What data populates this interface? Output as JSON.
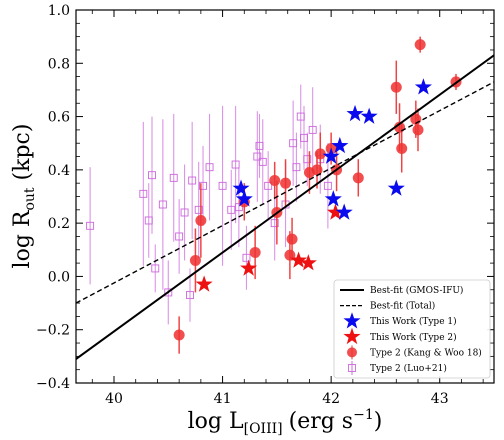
{
  "chart_data": {
    "type": "scatter",
    "title": "",
    "xlabel": "log L",
    "xlabel_sub": "[OIII]",
    "xlabel_unit": "(erg s",
    "xlabel_unit_sup": "−1",
    "xlabel_unit_close": ")",
    "ylabel": "log R",
    "ylabel_sub": "out",
    "ylabel_unit": " (kpc)",
    "xlim": [
      39.65,
      43.5
    ],
    "ylim": [
      -0.4,
      1.0
    ],
    "xticks": [
      40,
      41,
      42,
      43
    ],
    "yticks": [
      -0.4,
      -0.2,
      0.0,
      0.2,
      0.4,
      0.6,
      0.8,
      1.0
    ],
    "xtick_labels": [
      "40",
      "41",
      "42",
      "43"
    ],
    "ytick_labels": [
      "−0.4",
      "−0.2",
      "0.0",
      "0.2",
      "0.4",
      "0.6",
      "0.8",
      "1.0"
    ],
    "grid": false,
    "legend_position": "bottom-right",
    "fits": [
      {
        "name": "Best-fit (GMOS-IFU)",
        "style": "solid",
        "x": [
          39.65,
          43.5
        ],
        "y": [
          -0.31,
          0.83
        ]
      },
      {
        "name": "Best-fit (Total)",
        "style": "dashed",
        "x": [
          39.65,
          43.5
        ],
        "y": [
          -0.1,
          0.73
        ]
      }
    ],
    "series": [
      {
        "name": "This Work (Type 1)",
        "marker": "star",
        "color": "#0a0aee",
        "points": [
          {
            "x": 41.17,
            "y": 0.33
          },
          {
            "x": 41.2,
            "y": 0.29
          },
          {
            "x": 42.0,
            "y": 0.45
          },
          {
            "x": 42.02,
            "y": 0.29
          },
          {
            "x": 42.08,
            "y": 0.49
          },
          {
            "x": 42.12,
            "y": 0.24
          },
          {
            "x": 42.22,
            "y": 0.61
          },
          {
            "x": 42.35,
            "y": 0.6
          },
          {
            "x": 42.6,
            "y": 0.33
          },
          {
            "x": 42.85,
            "y": 0.71
          }
        ]
      },
      {
        "name": "This Work (Type 2)",
        "marker": "star",
        "color": "#ee1111",
        "points": [
          {
            "x": 40.83,
            "y": -0.03
          },
          {
            "x": 41.24,
            "y": 0.03
          },
          {
            "x": 41.7,
            "y": 0.06
          },
          {
            "x": 41.79,
            "y": 0.05
          },
          {
            "x": 42.04,
            "y": 0.24
          }
        ]
      },
      {
        "name": "Type 2 (Kang & Woo 18)",
        "marker": "circle",
        "color": "#ee3030",
        "points": [
          {
            "x": 40.6,
            "y": -0.22,
            "err": 0.07
          },
          {
            "x": 40.75,
            "y": 0.06,
            "err": 0.12
          },
          {
            "x": 40.8,
            "y": 0.21,
            "err": 0.14
          },
          {
            "x": 41.2,
            "y": 0.28,
            "err": 0.07
          },
          {
            "x": 41.3,
            "y": 0.09,
            "err": 0.1
          },
          {
            "x": 41.48,
            "y": 0.36,
            "err": 0.07
          },
          {
            "x": 41.5,
            "y": 0.24,
            "err": 0.12
          },
          {
            "x": 41.58,
            "y": 0.35,
            "err": 0.09
          },
          {
            "x": 41.62,
            "y": 0.08,
            "err": 0.09
          },
          {
            "x": 41.64,
            "y": 0.14,
            "err": 0.08
          },
          {
            "x": 41.8,
            "y": 0.39,
            "err": 0.08
          },
          {
            "x": 41.87,
            "y": 0.4,
            "err": 0.07
          },
          {
            "x": 41.9,
            "y": 0.46,
            "err": 0.08
          },
          {
            "x": 42.0,
            "y": 0.48,
            "err": 0.06
          },
          {
            "x": 42.05,
            "y": 0.4,
            "err": 0.08
          },
          {
            "x": 42.25,
            "y": 0.37,
            "err": 0.07
          },
          {
            "x": 42.6,
            "y": 0.71,
            "err": 0.1
          },
          {
            "x": 42.63,
            "y": 0.56,
            "err": 0.09
          },
          {
            "x": 42.65,
            "y": 0.48,
            "err": 0.09
          },
          {
            "x": 42.78,
            "y": 0.59,
            "err": 0.07
          },
          {
            "x": 42.8,
            "y": 0.55,
            "err": 0.08
          },
          {
            "x": 42.82,
            "y": 0.87,
            "err": 0.03
          },
          {
            "x": 43.15,
            "y": 0.73,
            "err": 0.03
          }
        ]
      },
      {
        "name": "Type 2 (Luo+21)",
        "marker": "open-square",
        "color": "#cc66dd",
        "points": [
          {
            "x": 39.78,
            "y": 0.19,
            "err": 0.22
          },
          {
            "x": 40.27,
            "y": 0.31,
            "err": 0.27
          },
          {
            "x": 40.32,
            "y": 0.21,
            "err": 0.14
          },
          {
            "x": 40.35,
            "y": 0.38,
            "err": 0.22
          },
          {
            "x": 40.38,
            "y": 0.03,
            "err": 0.09
          },
          {
            "x": 40.45,
            "y": 0.27,
            "err": 0.32
          },
          {
            "x": 40.5,
            "y": -0.06,
            "err": 0.12
          },
          {
            "x": 40.55,
            "y": 0.37,
            "err": 0.24
          },
          {
            "x": 40.6,
            "y": 0.15,
            "err": 0.14
          },
          {
            "x": 40.65,
            "y": 0.24,
            "err": 0.18
          },
          {
            "x": 40.7,
            "y": -0.07,
            "err": 0.1
          },
          {
            "x": 40.72,
            "y": 0.36,
            "err": 0.22
          },
          {
            "x": 40.78,
            "y": 0.25,
            "err": 0.18
          },
          {
            "x": 40.82,
            "y": 0.34,
            "err": 0.15
          },
          {
            "x": 40.88,
            "y": 0.41,
            "err": 0.2
          },
          {
            "x": 41.0,
            "y": 0.34,
            "err": 0.3
          },
          {
            "x": 41.08,
            "y": 0.25,
            "err": 0.15
          },
          {
            "x": 41.12,
            "y": 0.42,
            "err": 0.22
          },
          {
            "x": 41.15,
            "y": 0.26,
            "err": 0.15
          },
          {
            "x": 41.22,
            "y": 0.07,
            "err": 0.12
          },
          {
            "x": 41.32,
            "y": 0.45,
            "err": 0.17
          },
          {
            "x": 41.34,
            "y": 0.49,
            "err": 0.12
          },
          {
            "x": 41.37,
            "y": 0.43,
            "err": 0.16
          },
          {
            "x": 41.42,
            "y": 0.34,
            "err": 0.13
          },
          {
            "x": 41.48,
            "y": 0.2,
            "err": 0.14
          },
          {
            "x": 41.58,
            "y": 0.27,
            "err": 0.16
          },
          {
            "x": 41.65,
            "y": 0.5,
            "err": 0.16
          },
          {
            "x": 41.68,
            "y": 0.41,
            "err": 0.13
          },
          {
            "x": 41.72,
            "y": 0.6,
            "err": 0.12
          },
          {
            "x": 41.75,
            "y": 0.52,
            "err": 0.12
          },
          {
            "x": 41.78,
            "y": 0.44,
            "err": 0.1
          },
          {
            "x": 41.83,
            "y": 0.55,
            "err": 0.16
          },
          {
            "x": 41.9,
            "y": 0.44,
            "err": 0.13
          },
          {
            "x": 41.97,
            "y": 0.34,
            "err": 0.16
          }
        ]
      }
    ]
  }
}
